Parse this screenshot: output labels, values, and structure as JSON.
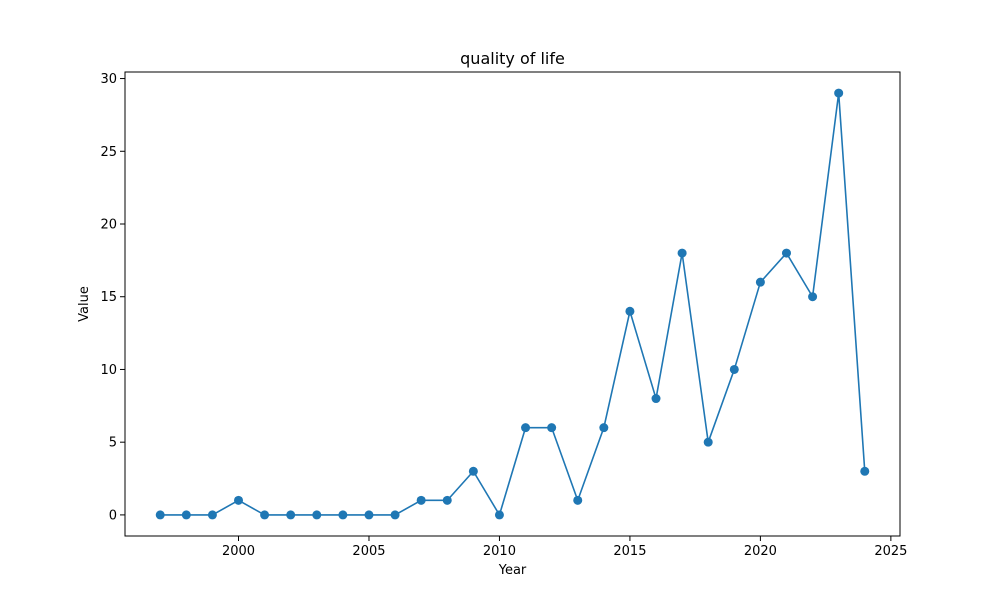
{
  "chart_data": {
    "type": "line",
    "title": "quality of life",
    "xlabel": "Year",
    "ylabel": "Value",
    "x": [
      1997,
      1998,
      1999,
      2000,
      2001,
      2002,
      2003,
      2004,
      2005,
      2006,
      2007,
      2008,
      2009,
      2010,
      2011,
      2012,
      2013,
      2014,
      2015,
      2016,
      2017,
      2018,
      2019,
      2020,
      2021,
      2022,
      2023,
      2024
    ],
    "series": [
      {
        "values": [
          0,
          0,
          0,
          1,
          0,
          0,
          0,
          0,
          0,
          0,
          1,
          1,
          3,
          0,
          6,
          6,
          1,
          6,
          14,
          8,
          18,
          5,
          10,
          16,
          18,
          15,
          29,
          3
        ],
        "color": "#1f77b4",
        "marker": "circle"
      }
    ],
    "xlim": [
      1995.65,
      2025.35
    ],
    "ylim": [
      -1.45,
      30.45
    ],
    "xticks": [
      "2000",
      "2005",
      "2010",
      "2015",
      "2020",
      "2025"
    ],
    "yticks": [
      "0",
      "5",
      "10",
      "15",
      "20",
      "25",
      "30"
    ],
    "grid": false,
    "legend": "none"
  }
}
